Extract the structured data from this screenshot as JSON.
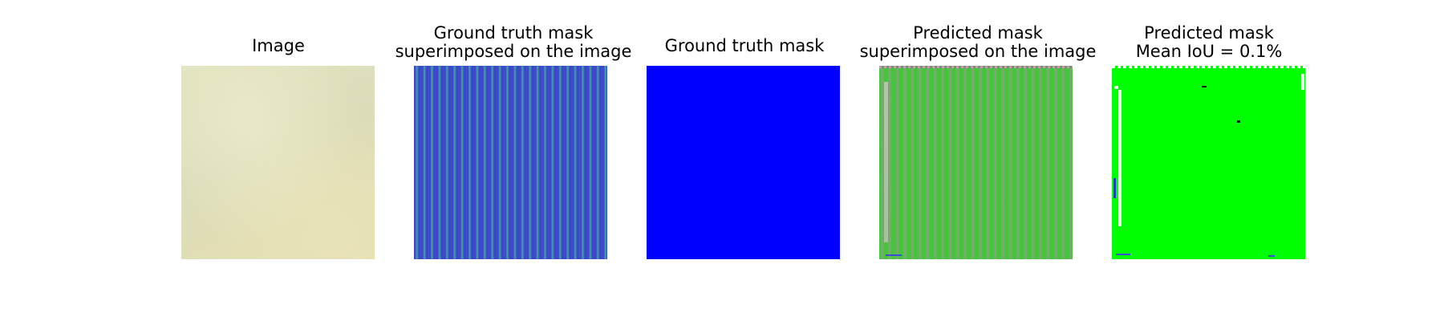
{
  "figure": {
    "panels": [
      {
        "title_lines": [
          "Image"
        ]
      },
      {
        "title_lines": [
          "Ground truth mask",
          "superimposed on the image"
        ]
      },
      {
        "title_lines": [
          "Ground truth mask"
        ]
      },
      {
        "title_lines": [
          "Predicted mask",
          "superimposed on the image"
        ]
      },
      {
        "title_lines": [
          "Predicted mask",
          "Mean IoU = 0.1%"
        ]
      }
    ]
  },
  "colors": {
    "ground_truth_mask": "#0000ff",
    "predicted_mask": "#00ff00",
    "background": "#ffffff"
  }
}
